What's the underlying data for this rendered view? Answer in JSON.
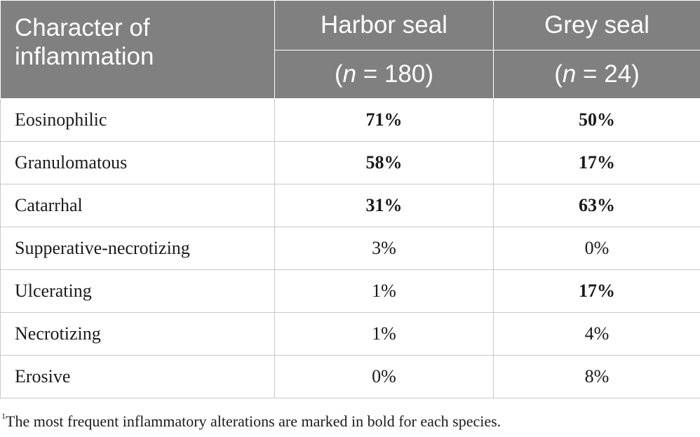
{
  "table": {
    "header": {
      "col1": "Character of inflammation",
      "col2": "Harbor seal",
      "col3": "Grey seal",
      "col2_n_italic": "n",
      "col2_n_rest": " = 180)",
      "col3_n_italic": "n",
      "col3_n_rest": " = 24)",
      "paren_open": "("
    },
    "rows": [
      {
        "name": "Eosinophilic",
        "harbor": "71%",
        "grey": "50%",
        "harbor_bold": true,
        "grey_bold": true
      },
      {
        "name": "Granulomatous",
        "harbor": "58%",
        "grey": "17%",
        "harbor_bold": true,
        "grey_bold": true
      },
      {
        "name": "Catarrhal",
        "harbor": "31%",
        "grey": "63%",
        "harbor_bold": true,
        "grey_bold": true
      },
      {
        "name": "Supperative-necrotizing",
        "harbor": "3%",
        "grey": "0%",
        "harbor_bold": false,
        "grey_bold": false
      },
      {
        "name": "Ulcerating",
        "harbor": "1%",
        "grey": "17%",
        "harbor_bold": false,
        "grey_bold": true
      },
      {
        "name": "Necrotizing",
        "harbor": "1%",
        "grey": "4%",
        "harbor_bold": false,
        "grey_bold": false
      },
      {
        "name": "Erosive",
        "harbor": "0%",
        "grey": "8%",
        "harbor_bold": false,
        "grey_bold": false
      }
    ]
  },
  "footnote": {
    "marker": "1",
    "text": "The most frequent inflammatory alterations are marked in bold for each species."
  },
  "colors": {
    "header_bg": "#808080",
    "header_text": "#ffffff",
    "grid": "#c8c8c8"
  }
}
